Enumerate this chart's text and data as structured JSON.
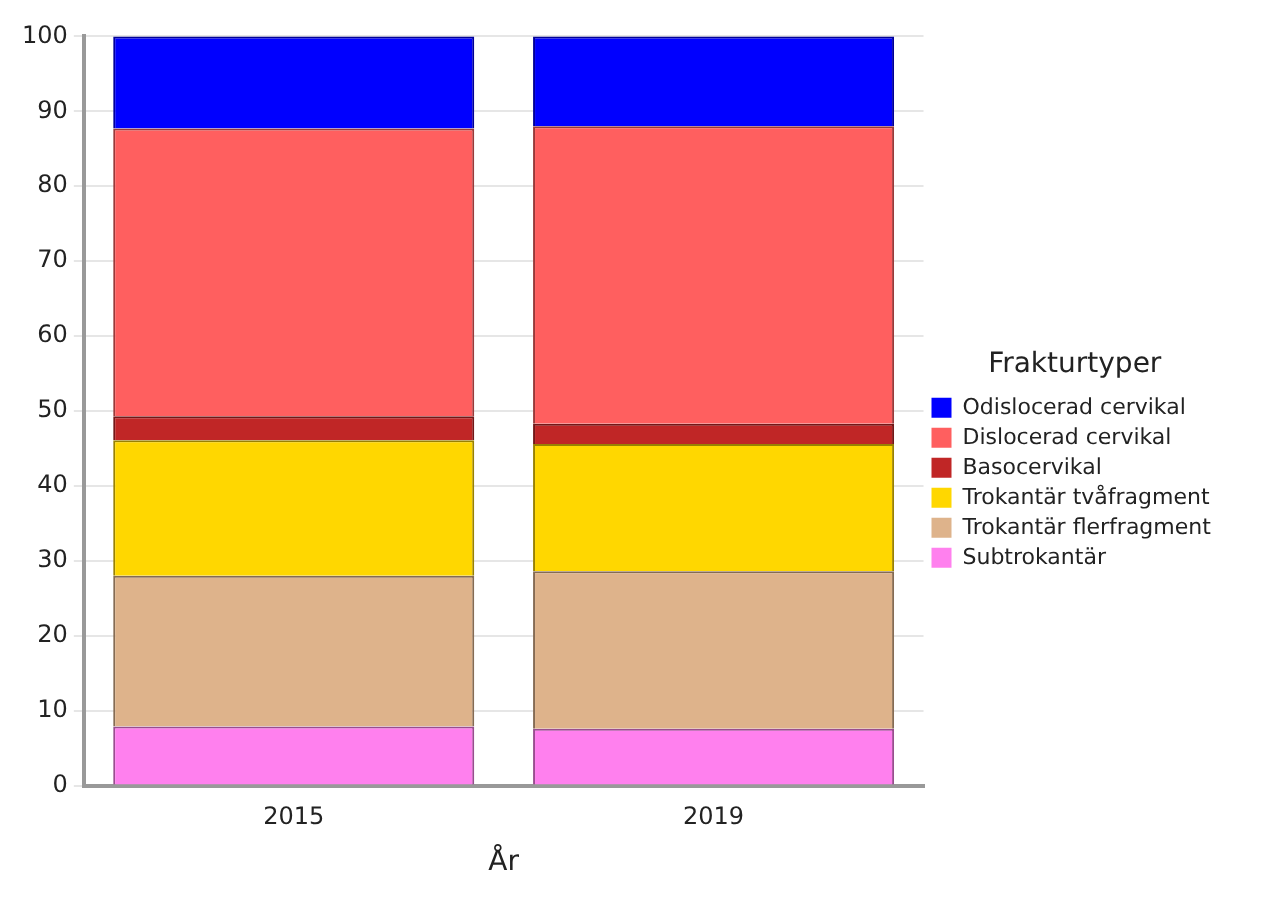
{
  "chart_data": {
    "type": "bar",
    "stacked": true,
    "xlabel": "År",
    "legend_title": "Frakturtyper",
    "legend": "right",
    "grid": "y",
    "categories": [
      "2015",
      "2019"
    ],
    "ylim": [
      0,
      100
    ],
    "yticks": [
      0,
      10,
      20,
      30,
      40,
      50,
      60,
      70,
      80,
      90,
      100
    ],
    "series": [
      {
        "name": "Subtrokantär",
        "color": "#ff80ee",
        "values": [
          7.9,
          7.6
        ]
      },
      {
        "name": "Trokantär flerfragment",
        "color": "#deb38b",
        "values": [
          20.1,
          21.0
        ]
      },
      {
        "name": "Trokantär tvåfragment",
        "color": "#ffd700",
        "values": [
          18.1,
          17.0
        ]
      },
      {
        "name": "Basocervikal",
        "color": "#c02626",
        "values": [
          3.2,
          2.7
        ]
      },
      {
        "name": "Dislocerad cervikal",
        "color": "#ff5f5f",
        "values": [
          38.4,
          39.7
        ]
      },
      {
        "name": "Odislocerad cervikal",
        "color": "#0000ff",
        "values": [
          12.3,
          12.0
        ]
      }
    ]
  }
}
